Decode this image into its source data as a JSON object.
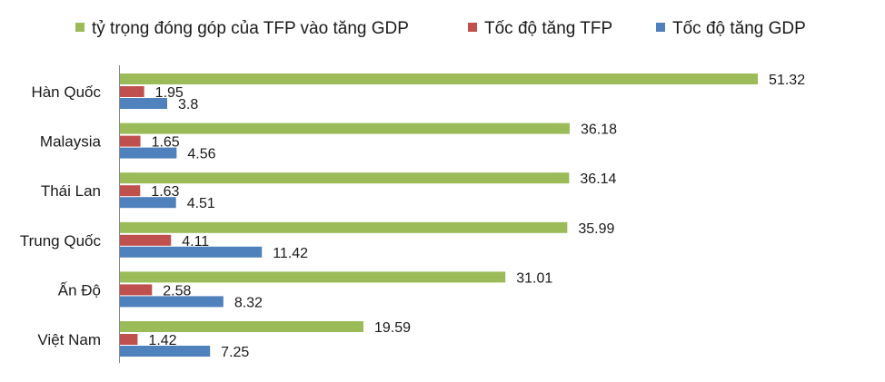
{
  "chart_data": {
    "type": "bar",
    "orientation": "horizontal",
    "categories": [
      "Hàn Quốc",
      "Malaysia",
      "Thái Lan",
      "Trung Quốc",
      "Ấn Độ",
      "Việt Nam"
    ],
    "series": [
      {
        "name": "tỷ trọng đóng góp của TFP vào tăng GDP",
        "color": "#9BBB59",
        "values": [
          51.32,
          36.18,
          36.14,
          35.99,
          31.01,
          19.59
        ]
      },
      {
        "name": "Tốc độ tăng TFP",
        "color": "#C0504D",
        "values": [
          1.95,
          1.65,
          1.63,
          4.11,
          2.58,
          1.42
        ]
      },
      {
        "name": "Tốc độ tăng GDP",
        "color": "#4F81BD",
        "values": [
          3.8,
          4.56,
          4.51,
          11.42,
          8.32,
          7.25
        ]
      }
    ],
    "value_labels": [
      [
        "51.32",
        "36.18",
        "36.14",
        "35.99",
        "31.01",
        "19.59"
      ],
      [
        "1.95",
        "1.65",
        "1.63",
        "4.11",
        "2.58",
        "1.42"
      ],
      [
        "3.8",
        "4.56",
        "4.51",
        "11.42",
        "8.32",
        "7.25"
      ]
    ],
    "xlim": [
      0,
      60
    ],
    "grid": false,
    "legend_position": "top",
    "title": "",
    "xlabel": "",
    "ylabel": ""
  }
}
